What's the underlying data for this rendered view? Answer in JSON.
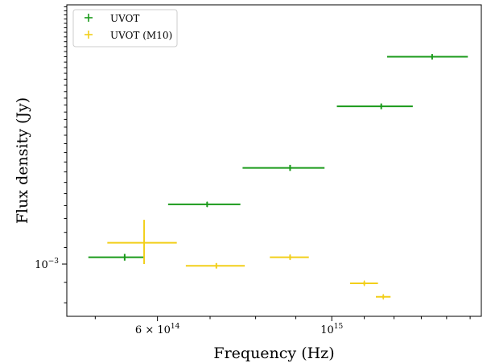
{
  "chart_data": {
    "type": "scatter",
    "title": "",
    "xlabel": "Frequency (Hz)",
    "ylabel": "Flux density (Jy)",
    "xscale": "log",
    "yscale": "log",
    "xlim": [
      460000000000000.0,
      1550000000000000.0
    ],
    "ylim": [
      0.00074,
      0.00445
    ],
    "grid": false,
    "legend_position": "top-left",
    "x_ticks": [
      {
        "value": 600000000000000.0,
        "label": "6 × 10",
        "exp": "14"
      },
      {
        "value": 1000000000000000.0,
        "label": "10",
        "exp": "15"
      }
    ],
    "y_ticks": [
      {
        "value": 0.001,
        "label": "10",
        "exp": "−3"
      }
    ],
    "series": [
      {
        "name": "UVOT",
        "color": "#1a9a1a",
        "points": [
          {
            "x": 545000000000000.0,
            "y": 0.00104,
            "xerr_low": 490000000000000.0,
            "xerr_high": 578000000000000.0,
            "yerr_low": 0.00102,
            "yerr_high": 0.00106
          },
          {
            "x": 694000000000000.0,
            "y": 0.00141,
            "xerr_low": 619000000000000.0,
            "xerr_high": 765000000000000.0,
            "yerr_low": 0.00139,
            "yerr_high": 0.00143
          },
          {
            "x": 885000000000000.0,
            "y": 0.00174,
            "xerr_low": 770000000000000.0,
            "xerr_high": 979000000000000.0,
            "yerr_low": 0.00171,
            "yerr_high": 0.00177
          },
          {
            "x": 1156000000000000.0,
            "y": 0.00248,
            "xerr_low": 1015000000000000.0,
            "xerr_high": 1268000000000000.0,
            "yerr_low": 0.00244,
            "yerr_high": 0.00252
          },
          {
            "x": 1342000000000000.0,
            "y": 0.0033,
            "xerr_low": 1176000000000000.0,
            "xerr_high": 1490000000000000.0,
            "yerr_low": 0.00325,
            "yerr_high": 0.00335
          }
        ]
      },
      {
        "name": "UVOT (M10)",
        "color": "#f2cf1a",
        "points": [
          {
            "x": 577000000000000.0,
            "y": 0.00113,
            "xerr_low": 518000000000000.0,
            "xerr_high": 635000000000000.0,
            "yerr_low": 0.001,
            "yerr_high": 0.00129
          },
          {
            "x": 713000000000000.0,
            "y": 0.00099,
            "xerr_low": 652000000000000.0,
            "xerr_high": 775000000000000.0,
            "yerr_low": 0.000975,
            "yerr_high": 0.001005
          },
          {
            "x": 885000000000000.0,
            "y": 0.00104,
            "xerr_low": 834000000000000.0,
            "xerr_high": 935000000000000.0,
            "yerr_low": 0.001025,
            "yerr_high": 0.001055
          },
          {
            "x": 1100000000000000.0,
            "y": 0.000895,
            "xerr_low": 1055000000000000.0,
            "xerr_high": 1145000000000000.0,
            "yerr_low": 0.000885,
            "yerr_high": 0.000905
          },
          {
            "x": 1163000000000000.0,
            "y": 0.000828,
            "xerr_low": 1138000000000000.0,
            "xerr_high": 1188000000000000.0,
            "yerr_low": 0.00082,
            "yerr_high": 0.000836
          }
        ]
      }
    ]
  }
}
